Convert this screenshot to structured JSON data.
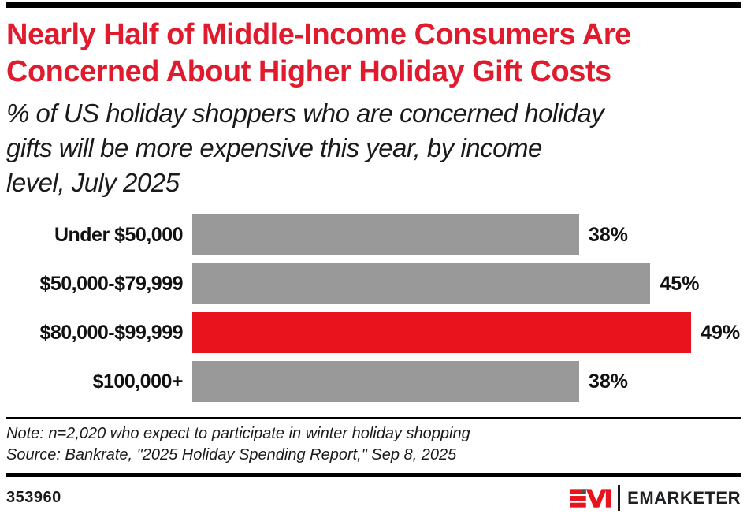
{
  "colors": {
    "title_red": "#e11b2e",
    "bar_red": "#e8131d",
    "bar_gray": "#999999",
    "text_black": "#1a1a1a",
    "rule_black": "#000000"
  },
  "header": {
    "title_lines": [
      "Nearly Half of Middle-Income Consumers Are",
      "Concerned About Higher Holiday Gift Costs"
    ],
    "subtitle_lines": [
      "% of US holiday shoppers who are concerned holiday",
      "gifts will be more expensive this year, by income",
      "level, July 2025"
    ]
  },
  "chart_data": {
    "type": "bar",
    "orientation": "horizontal",
    "title": "Nearly Half of Middle-Income Consumers Are Concerned About Higher Holiday Gift Costs",
    "subtitle": "% of US holiday shoppers who are concerned holiday gifts will be more expensive this year, by income level, July 2025",
    "categories": [
      "Under $50,000",
      "$50,000-$79,999",
      "$80,000-$99,999",
      "$100,000+"
    ],
    "values": [
      38,
      45,
      49,
      38
    ],
    "value_labels": [
      "38%",
      "45%",
      "49%",
      "38%"
    ],
    "unit": "%",
    "xlim": [
      0,
      54
    ],
    "highlight_index": 2,
    "bar_colors": [
      "#999999",
      "#999999",
      "#e8131d",
      "#999999"
    ],
    "grid": false,
    "legend": false
  },
  "footnote": {
    "note": "Note: n=2,020 who expect to participate in winter holiday shopping",
    "source": "Source: Bankrate, \"2025 Holiday Spending Report,\" Sep 8, 2025"
  },
  "footer": {
    "chart_id": "353960",
    "brand_name": "EMARKETER"
  }
}
